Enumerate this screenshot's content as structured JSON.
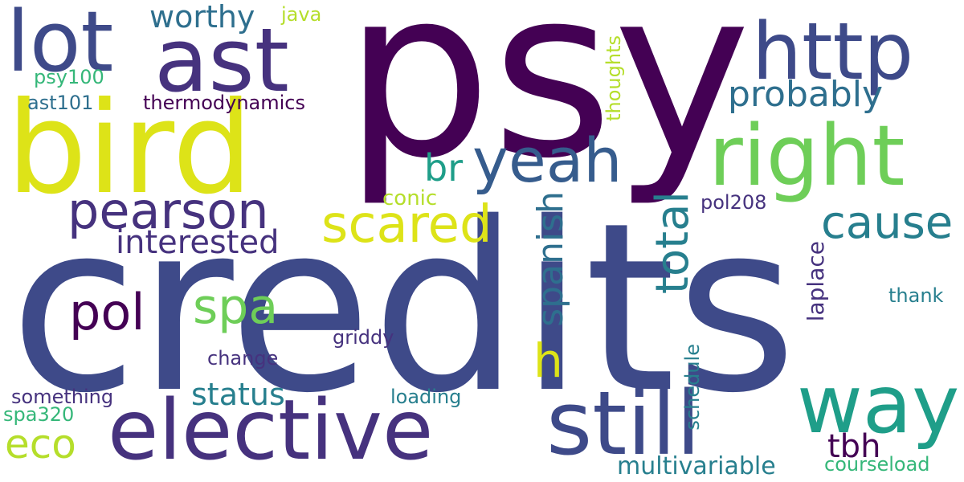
{
  "words": {
    "psy": "psy",
    "credits": "credits",
    "bird": "bird",
    "ast": "ast",
    "lot": "lot",
    "http": "http",
    "right": "right",
    "elective": "elective",
    "still": "still",
    "way": "way",
    "yeah": "yeah",
    "pearson": "pearson",
    "scared": "scared",
    "cause": "cause",
    "total": "total",
    "probably": "probably",
    "worthy": "worthy",
    "java": "java",
    "psy100": "psy100",
    "ast101": "ast101",
    "thermodynamics": "thermodynamics",
    "thoughts": "thoughts",
    "br": "br",
    "conic": "conic",
    "spanish": "spanish",
    "h": "h",
    "interested": "interested",
    "pol": "pol",
    "spa": "spa",
    "pol208": "pol208",
    "laplace": "laplace",
    "thank": "thank",
    "griddy": "griddy",
    "change": "change",
    "schedule": "schedule",
    "status": "status",
    "something": "something",
    "loading": "loading",
    "spa320": "spa320",
    "eco": "eco",
    "tbh": "tbh",
    "multivariable": "multivariable",
    "courseload": "courseload"
  },
  "colors": {
    "dark_purple": "#440154",
    "indigo": "#46327e",
    "blue_slate": "#3e4a89",
    "steel": "#365c8d",
    "teal_blue": "#2e6f8e",
    "teal": "#277f8e",
    "sea": "#1f9e89",
    "green": "#35b779",
    "lime": "#6ece58",
    "yellow_green": "#b5de2b",
    "yellow": "#dde318"
  }
}
